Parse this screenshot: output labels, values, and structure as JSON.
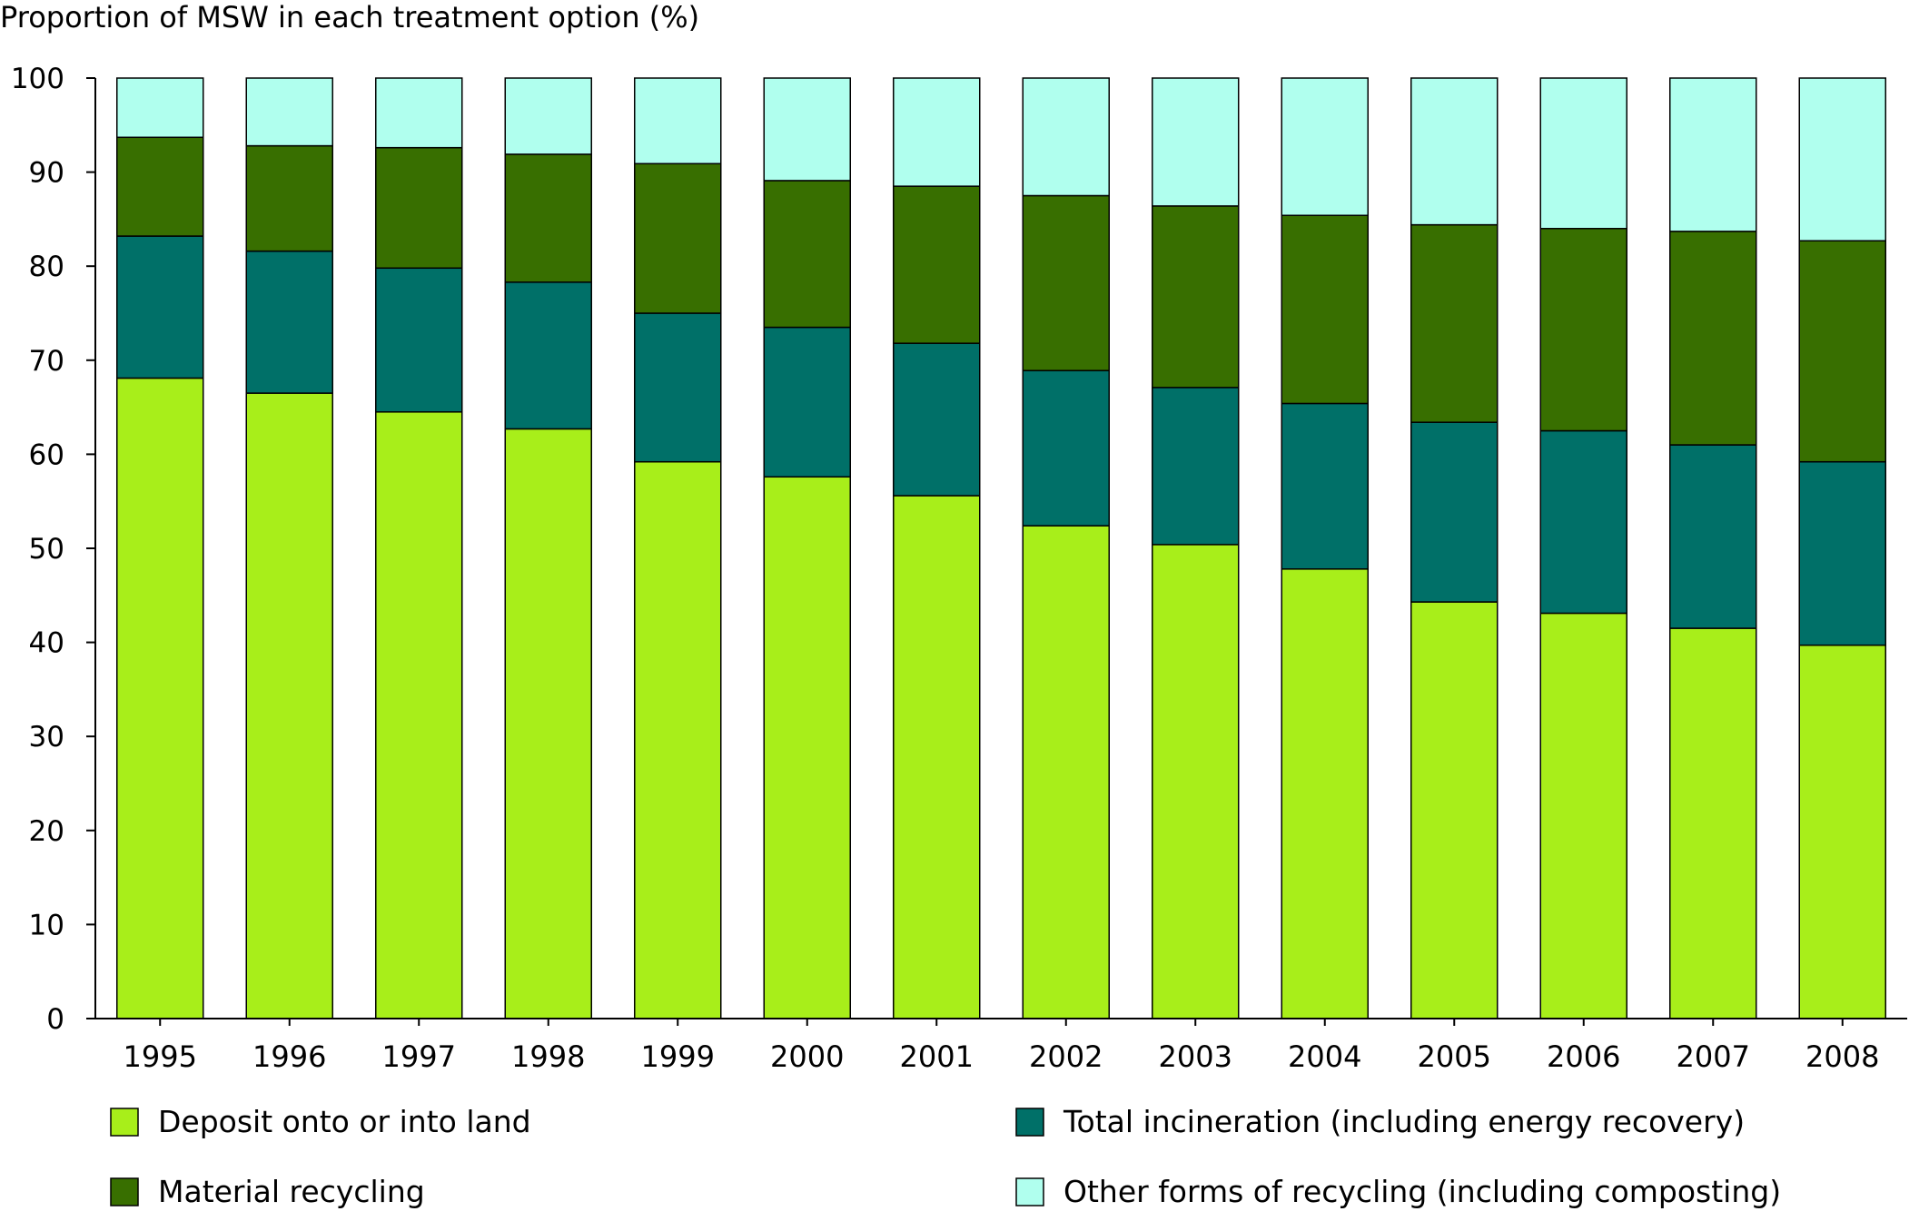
{
  "chart_data": {
    "type": "bar",
    "stacked": true,
    "ylabel": "Proportion of MSW in each treatment option (%)",
    "ylim": [
      0,
      100
    ],
    "yticks": [
      0,
      10,
      20,
      30,
      40,
      50,
      60,
      70,
      80,
      90,
      100
    ],
    "grid": false,
    "legend_position": "bottom",
    "categories": [
      "1995",
      "1996",
      "1997",
      "1998",
      "1999",
      "2000",
      "2001",
      "2002",
      "2003",
      "2004",
      "2005",
      "2006",
      "2007",
      "2008"
    ],
    "series": [
      {
        "name": "Deposit onto or into land",
        "color": "#a8ee1a",
        "values": [
          68.1,
          66.5,
          64.5,
          62.7,
          59.2,
          57.6,
          55.6,
          52.4,
          50.4,
          47.8,
          44.3,
          43.1,
          41.5,
          39.7
        ]
      },
      {
        "name": "Total incineration (including energy recovery)",
        "color": "#007068",
        "values": [
          15.1,
          15.1,
          15.3,
          15.6,
          15.8,
          15.9,
          16.2,
          16.5,
          16.7,
          17.6,
          19.1,
          19.4,
          19.5,
          19.5
        ]
      },
      {
        "name": "Material recycling",
        "color": "#386f00",
        "values": [
          10.5,
          11.2,
          12.8,
          13.6,
          15.9,
          15.6,
          16.7,
          18.6,
          19.3,
          20.0,
          21.0,
          21.5,
          22.7,
          23.5
        ]
      },
      {
        "name": "Other forms of recycling (including composting)",
        "color": "#b0ffee",
        "values": [
          6.3,
          7.2,
          7.4,
          8.1,
          9.1,
          10.9,
          11.5,
          12.5,
          13.6,
          14.6,
          15.6,
          16.0,
          16.3,
          17.3
        ]
      }
    ]
  }
}
